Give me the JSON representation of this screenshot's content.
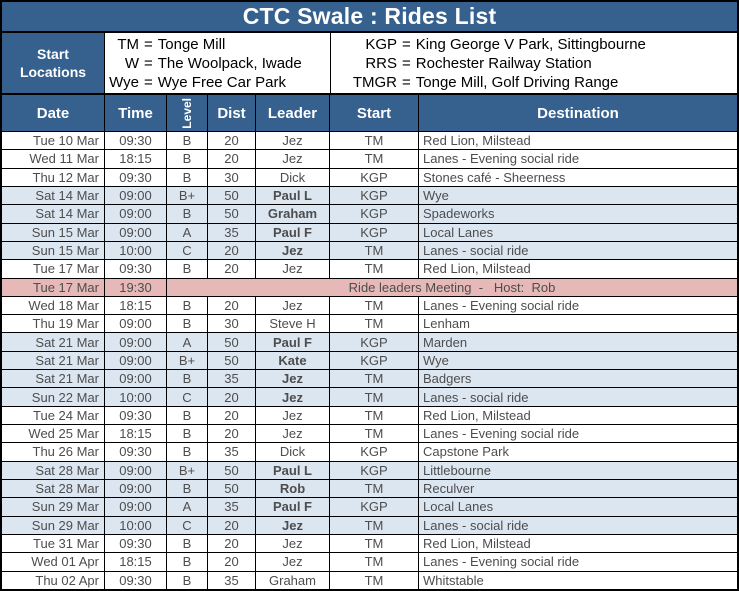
{
  "title": "CTC Swale : Rides List",
  "legend": {
    "label": "Start Locations",
    "separator": "=",
    "left": [
      {
        "abbr": "TM",
        "name": "Tonge Mill"
      },
      {
        "abbr": "W",
        "name": "The Woolpack, Iwade"
      },
      {
        "abbr": "Wye",
        "name": "Wye Free Car Park"
      }
    ],
    "right": [
      {
        "abbr": "KGP",
        "name": "King George V Park, Sittingbourne"
      },
      {
        "abbr": "RRS",
        "name": "Rochester Railway Station"
      },
      {
        "abbr": "TMGR",
        "name": "Tonge Mill, Golf Driving Range"
      }
    ]
  },
  "columns": [
    "Date",
    "Time",
    "Level",
    "Dist",
    "Leader",
    "Start",
    "Destination"
  ],
  "rows": [
    {
      "type": "weekday",
      "date": "Tue 10 Mar",
      "time": "09:30",
      "level": "B",
      "dist": "20",
      "leader": "Jez",
      "start": "TM",
      "destination": "Red Lion, Milstead"
    },
    {
      "type": "weekday",
      "date": "Wed 11 Mar",
      "time": "18:15",
      "level": "B",
      "dist": "20",
      "leader": "Jez",
      "start": "TM",
      "destination": "Lanes - Evening social ride"
    },
    {
      "type": "weekday",
      "date": "Thu 12 Mar",
      "time": "09:30",
      "level": "B",
      "dist": "30",
      "leader": "Dick",
      "start": "KGP",
      "destination": "Stones café - Sheerness"
    },
    {
      "type": "weekend",
      "date": "Sat 14 Mar",
      "time": "09:00",
      "level": "B+",
      "dist": "50",
      "leader": "Paul L",
      "start": "KGP",
      "destination": "Wye"
    },
    {
      "type": "weekend",
      "date": "Sat 14 Mar",
      "time": "09:00",
      "level": "B",
      "dist": "50",
      "leader": "Graham",
      "start": "KGP",
      "destination": "Spadeworks"
    },
    {
      "type": "weekend",
      "date": "Sun 15 Mar",
      "time": "09:00",
      "level": "A",
      "dist": "35",
      "leader": "Paul F",
      "start": "KGP",
      "destination": "Local Lanes"
    },
    {
      "type": "weekend",
      "date": "Sun 15 Mar",
      "time": "10:00",
      "level": "C",
      "dist": "20",
      "leader": "Jez",
      "start": "TM",
      "destination": "Lanes - social ride"
    },
    {
      "type": "weekday",
      "date": "Tue 17 Mar",
      "time": "09:30",
      "level": "B",
      "dist": "20",
      "leader": "Jez",
      "start": "TM",
      "destination": "Red Lion, Milstead"
    },
    {
      "type": "meeting",
      "date": "Tue 17 Mar",
      "time": "19:30",
      "text": "Ride leaders Meeting  -   Host:  Rob"
    },
    {
      "type": "weekday",
      "date": "Wed 18 Mar",
      "time": "18:15",
      "level": "B",
      "dist": "20",
      "leader": "Jez",
      "start": "TM",
      "destination": "Lanes - Evening social ride"
    },
    {
      "type": "weekday",
      "date": "Thu 19 Mar",
      "time": "09:00",
      "level": "B",
      "dist": "30",
      "leader": "Steve H",
      "start": "TM",
      "destination": "Lenham"
    },
    {
      "type": "weekend",
      "date": "Sat 21 Mar",
      "time": "09:00",
      "level": "A",
      "dist": "50",
      "leader": "Paul F",
      "start": "KGP",
      "destination": "Marden"
    },
    {
      "type": "weekend",
      "date": "Sat 21 Mar",
      "time": "09:00",
      "level": "B+",
      "dist": "50",
      "leader": "Kate",
      "start": "KGP",
      "destination": "Wye"
    },
    {
      "type": "weekend",
      "date": "Sat 21 Mar",
      "time": "09:00",
      "level": "B",
      "dist": "35",
      "leader": "Jez",
      "start": "TM",
      "destination": "Badgers"
    },
    {
      "type": "weekend",
      "date": "Sun 22 Mar",
      "time": "10:00",
      "level": "C",
      "dist": "20",
      "leader": "Jez",
      "start": "TM",
      "destination": "Lanes - social ride"
    },
    {
      "type": "weekday",
      "date": "Tue 24 Mar",
      "time": "09:30",
      "level": "B",
      "dist": "20",
      "leader": "Jez",
      "start": "TM",
      "destination": "Red Lion, Milstead"
    },
    {
      "type": "weekday",
      "date": "Wed 25 Mar",
      "time": "18:15",
      "level": "B",
      "dist": "20",
      "leader": "Jez",
      "start": "TM",
      "destination": "Lanes - Evening social ride"
    },
    {
      "type": "weekday",
      "date": "Thu 26 Mar",
      "time": "09:30",
      "level": "B",
      "dist": "35",
      "leader": "Dick",
      "start": "KGP",
      "destination": "Capstone Park"
    },
    {
      "type": "weekend",
      "date": "Sat 28 Mar",
      "time": "09:00",
      "level": "B+",
      "dist": "50",
      "leader": "Paul L",
      "start": "KGP",
      "destination": "Littlebourne"
    },
    {
      "type": "weekend",
      "date": "Sat 28 Mar",
      "time": "09:00",
      "level": "B",
      "dist": "50",
      "leader": "Rob",
      "start": "TM",
      "destination": "Reculver"
    },
    {
      "type": "weekend",
      "date": "Sun 29 Mar",
      "time": "09:00",
      "level": "A",
      "dist": "35",
      "leader": "Paul F",
      "start": "KGP",
      "destination": "Local Lanes"
    },
    {
      "type": "weekend",
      "date": "Sun 29 Mar",
      "time": "10:00",
      "level": "C",
      "dist": "20",
      "leader": "Jez",
      "start": "TM",
      "destination": "Lanes - social ride"
    },
    {
      "type": "weekday",
      "date": "Tue 31 Mar",
      "time": "09:30",
      "level": "B",
      "dist": "20",
      "leader": "Jez",
      "start": "TM",
      "destination": "Red Lion, Milstead"
    },
    {
      "type": "weekday",
      "date": "Wed 01 Apr",
      "time": "18:15",
      "level": "B",
      "dist": "20",
      "leader": "Jez",
      "start": "TM",
      "destination": "Lanes - Evening social ride"
    },
    {
      "type": "weekday",
      "date": "Thu 02 Apr",
      "time": "09:30",
      "level": "B",
      "dist": "35",
      "leader": "Graham",
      "start": "TM",
      "destination": "Whitstable"
    }
  ],
  "colors": {
    "header_blue": "#36618F",
    "weekend_row": "#DCE6F1",
    "meeting_row": "#E6B8B7",
    "border_color": "#000000",
    "data_text": "#4D4D4D"
  }
}
